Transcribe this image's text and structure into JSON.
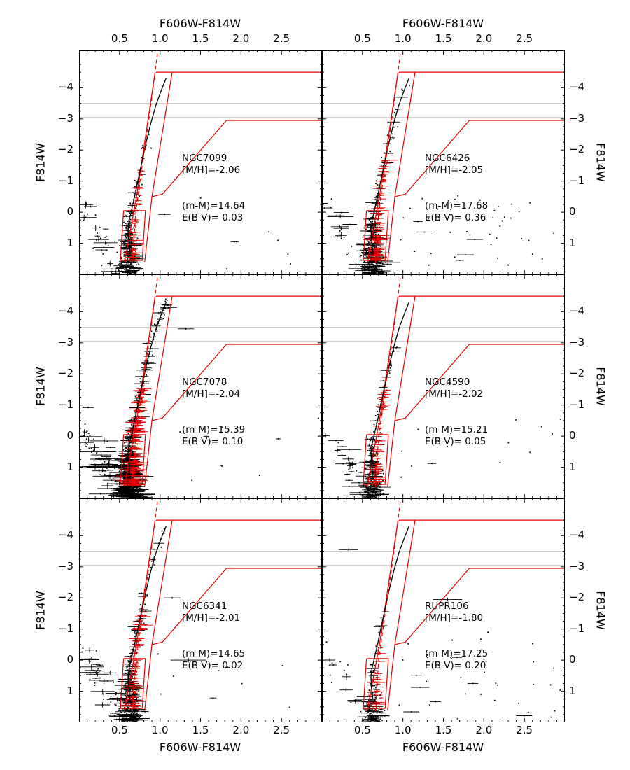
{
  "figure": {
    "background": "#ffffff",
    "frame_color": "#000000",
    "red": "#e60000",
    "gray": "#c8c8c8",
    "point_color": "#000000"
  },
  "chart_data": {
    "type": "scatter",
    "description": "Grid of six globular-cluster color-magnitude diagrams (F814W vs F606W-F814W) with red RGB selection regions, red dashed ridge lines, black fiducial curves, and photometry points with error bars.",
    "xlabel": "F606W-F814W",
    "ylabel": "F814W",
    "xlim": [
      0.0,
      3.0
    ],
    "ylim": [
      2.0,
      -5.2
    ],
    "x_ticks": [
      {
        "v": 0.5,
        "label": "0.5"
      },
      {
        "v": 1.0,
        "label": "1.0"
      },
      {
        "v": 1.5,
        "label": "1.5"
      },
      {
        "v": 2.0,
        "label": "2.0"
      },
      {
        "v": 2.5,
        "label": "2.5"
      }
    ],
    "y_ticks": [
      {
        "v": -4,
        "label": "−4"
      },
      {
        "v": -3,
        "label": "−3"
      },
      {
        "v": -2,
        "label": "−2"
      },
      {
        "v": -1,
        "label": "−1"
      },
      {
        "v": 0,
        "label": "0"
      },
      {
        "v": 1,
        "label": "1"
      }
    ],
    "gray_hlines": [
      -3.5,
      -3.05
    ],
    "red_overlay": {
      "top_hline": [
        [
          0.95,
          -4.5
        ],
        [
          3.0,
          -4.5
        ]
      ],
      "chute_left": [
        [
          0.56,
          1.62
        ],
        [
          0.71,
          -0.5
        ],
        [
          0.94,
          -4.5
        ]
      ],
      "chute_right": [
        [
          0.81,
          1.62
        ],
        [
          0.9,
          -0.5
        ],
        [
          1.15,
          -4.5
        ]
      ],
      "diagonal": [
        [
          0.9,
          -0.5
        ],
        [
          1.03,
          -0.58
        ],
        [
          1.82,
          -2.95
        ],
        [
          3.0,
          -2.95
        ]
      ],
      "bottom_box": [
        [
          0.55,
          -0.05
        ],
        [
          0.82,
          -0.05
        ],
        [
          0.78,
          1.55
        ],
        [
          0.51,
          1.55
        ]
      ],
      "dashed_ridge": [
        [
          0.66,
          1.65
        ],
        [
          0.7,
          0.0
        ],
        [
          0.78,
          -1.5
        ],
        [
          0.89,
          -3.5
        ],
        [
          0.97,
          -5.15
        ]
      ]
    },
    "fiducial": [
      [
        0.635,
        1.4
      ],
      [
        0.612,
        0.85
      ],
      [
        0.605,
        0.55
      ],
      [
        0.62,
        0.25
      ],
      [
        0.655,
        -0.15
      ],
      [
        0.69,
        -0.55
      ],
      [
        0.725,
        -1.0
      ],
      [
        0.77,
        -1.55
      ],
      [
        0.825,
        -2.2
      ],
      [
        0.885,
        -2.85
      ],
      [
        0.95,
        -3.45
      ],
      [
        1.02,
        -3.95
      ],
      [
        1.075,
        -4.3
      ]
    ],
    "panels": [
      {
        "name": "NGC7099",
        "metallicity": "[M/H]=-2.06",
        "modulus": "(m-M)=14.64",
        "reddening": "E(B-V)= 0.03",
        "seed": 101,
        "err_scale": 1.0,
        "ms": {
          "n": 240,
          "x0": 0.627,
          "sx": 0.03,
          "y0": 0.05,
          "y1": 1.97
        },
        "rgb": {
          "n": 55,
          "y0": -2.6,
          "y1": 0.5,
          "sx": 0.025
        },
        "red": {
          "n": 62,
          "y0": -1.6,
          "y1": 1.55
        },
        "field_left": {
          "n": 38
        },
        "field_right": {
          "n": 7
        },
        "outliers": [
          [
            2.58,
            1.35,
            0
          ],
          [
            1.92,
            0.95,
            0.05
          ]
        ]
      },
      {
        "name": "NGC6426",
        "metallicity": "[M/H]=-2.05",
        "modulus": "(m-M)=17.68",
        "reddening": "E(B-V)= 0.36",
        "seed": 202,
        "err_scale": 1.45,
        "ms": {
          "n": 300,
          "x0": 0.632,
          "sx": 0.036,
          "y0": 0.0,
          "y1": 1.97
        },
        "rgb": {
          "n": 90,
          "y0": -4.2,
          "y1": 0.5,
          "sx": 0.028
        },
        "red": {
          "n": 95,
          "y0": -1.7,
          "y1": 1.55
        },
        "field_left": {
          "n": 26
        },
        "field_right": {
          "n": 42
        },
        "outliers": [
          [
            2.72,
            1.5,
            0
          ],
          [
            2.3,
            1.7,
            0
          ]
        ]
      },
      {
        "name": "NGC7078",
        "metallicity": "[M/H]=-2.04",
        "modulus": "(m-M)=15.39",
        "reddening": "E(B-V)= 0.10",
        "seed": 303,
        "err_scale": 1.7,
        "ms": {
          "n": 520,
          "x0": 0.625,
          "sx": 0.032,
          "y0": 0.0,
          "y1": 1.97
        },
        "rgb": {
          "n": 170,
          "y0": -4.45,
          "y1": 0.5,
          "sx": 0.025
        },
        "red": {
          "n": 170,
          "y0": -1.6,
          "y1": 1.6
        },
        "field_left": {
          "n": 95
        },
        "field_right": {
          "n": 9
        },
        "outliers": [
          [
            1.32,
            -3.45,
            0.1
          ]
        ]
      },
      {
        "name": "NGC4590",
        "metallicity": "[M/H]=-2.02",
        "modulus": "(m-M)=15.21",
        "reddening": "E(B-V)= 0.05",
        "seed": 404,
        "err_scale": 1.1,
        "ms": {
          "n": 240,
          "x0": 0.624,
          "sx": 0.03,
          "y0": 0.05,
          "y1": 1.97
        },
        "rgb": {
          "n": 60,
          "y0": -3.0,
          "y1": 0.5,
          "sx": 0.024
        },
        "red": {
          "n": 70,
          "y0": -1.5,
          "y1": 1.55
        },
        "field_left": {
          "n": 30
        },
        "field_right": {
          "n": 12
        },
        "outliers": [
          [
            2.2,
            0.85,
            0
          ]
        ]
      },
      {
        "name": "NGC6341",
        "metallicity": "[M/H]=-2.01",
        "modulus": "(m-M)=14.65",
        "reddening": "E(B-V)= 0.02",
        "seed": 505,
        "err_scale": 1.35,
        "ms": {
          "n": 300,
          "x0": 0.627,
          "sx": 0.031,
          "y0": 0.05,
          "y1": 1.97
        },
        "rgb": {
          "n": 100,
          "y0": -4.3,
          "y1": 0.5,
          "sx": 0.026
        },
        "red": {
          "n": 95,
          "y0": -1.6,
          "y1": 1.55
        },
        "field_left": {
          "n": 55
        },
        "field_right": {
          "n": 9
        },
        "outliers": [
          [
            1.35,
            0.0,
            0.22
          ],
          [
            1.15,
            -2.0,
            0.1
          ]
        ]
      },
      {
        "name": "RUPR106",
        "metallicity": "[M/H]=-1.80",
        "modulus": "(m-M)=17.25",
        "reddening": "E(B-V)= 0.20",
        "seed": 606,
        "err_scale": 1.2,
        "ms": {
          "n": 130,
          "x0": 0.63,
          "sx": 0.028,
          "y0": 0.2,
          "y1": 1.97
        },
        "rgb": {
          "n": 18,
          "y0": -2.0,
          "y1": 0.5,
          "sx": 0.022
        },
        "red": {
          "n": 26,
          "y0": -1.0,
          "y1": 1.5
        },
        "field_left": {
          "n": 22
        },
        "field_right": {
          "n": 40
        },
        "outliers": [
          [
            0.33,
            -3.55,
            0.12
          ],
          [
            1.55,
            -1.95,
            0.18
          ],
          [
            2.05,
            -0.9,
            0
          ]
        ]
      }
    ]
  }
}
